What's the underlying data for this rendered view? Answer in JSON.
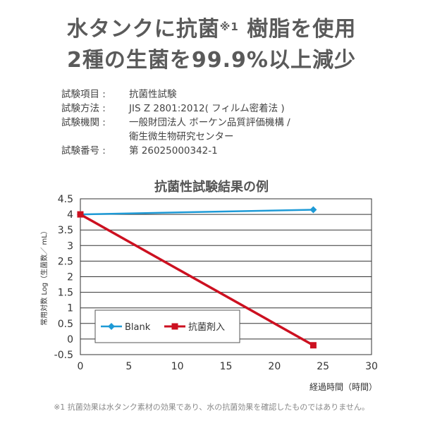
{
  "headline": {
    "line1_a": "水タンクに抗菌",
    "line1_mark": "※1",
    "line1_b": " 樹脂を使用",
    "line2": "2種の生菌を99.9%以上減少"
  },
  "test_info": [
    {
      "key": "試験項目 :",
      "value": "抗菌性試験"
    },
    {
      "key": "試験方法 :",
      "value": "JIS Z 2801:2012( フィルム密着法 )"
    },
    {
      "key": "試験機関 :",
      "value": "一般財団法人 ボーケン品質評価機構 /"
    },
    {
      "key": "",
      "value": "衛生微生物研究センター"
    },
    {
      "key": "試験番号 :",
      "value": "第 26025000342-1"
    }
  ],
  "footnote": "※1 抗菌効果は水タンク素材の効果であり、水の抗菌効果を確認したものではありません。",
  "colors": {
    "blank": "#1e9ad6",
    "antibacterial": "#cc1020",
    "grid": "#333333"
  },
  "chart_data": {
    "type": "line",
    "title": "抗菌性試験結果の例",
    "xlabel": "経過時間（時間）",
    "ylabel": "常用対数 Log（生菌数／ mL）",
    "xlim": [
      0,
      30
    ],
    "ylim": [
      -0.5,
      4.5
    ],
    "xticks": [
      0,
      5,
      10,
      15,
      20,
      25,
      30
    ],
    "yticks": [
      -0.5,
      0,
      0.5,
      1,
      1.5,
      2,
      2.5,
      3,
      3.5,
      4,
      4.5
    ],
    "ytick_labels": [
      "-0.5",
      "0",
      "0.5",
      "1",
      "1.5",
      "2",
      "2.5",
      "3",
      "3.5",
      "4",
      "4.5"
    ],
    "grid": true,
    "legend_position": "bottom-left",
    "series": [
      {
        "name": "Blank",
        "marker": "diamond",
        "x": [
          0,
          24
        ],
        "y": [
          4.0,
          4.15
        ]
      },
      {
        "name": "抗菌剤入",
        "marker": "square",
        "x": [
          0,
          24
        ],
        "y": [
          4.0,
          -0.2
        ]
      }
    ]
  }
}
